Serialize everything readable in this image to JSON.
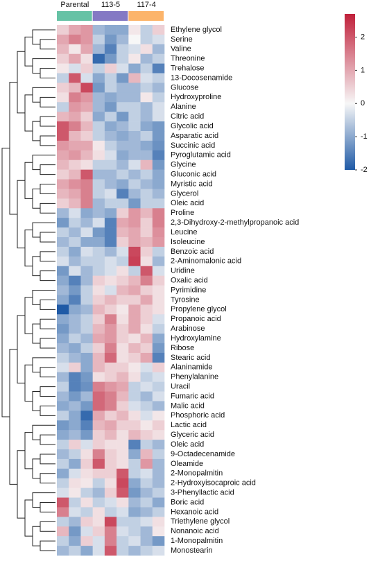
{
  "chart_data": {
    "type": "heatmap",
    "groups": [
      {
        "name": "Parental",
        "color": "#66c2a5"
      },
      {
        "name": "113-5",
        "color": "#8479c4"
      },
      {
        "name": "117-4",
        "color": "#fcb46a"
      }
    ],
    "rows": [
      "Ethylene glycol",
      "Serine",
      "Valine",
      "Threonine",
      "Trehalose",
      "13-Docosenamide",
      "Glucose",
      "Hydroxyproline",
      "Alanine",
      "Citric acid",
      "Glycolic acid",
      "Asparatic acid",
      "Succinic acid",
      "Pyroglutamic acid",
      "Glycine",
      "Gluconic acid",
      "Myristic acid",
      "Glycerol",
      "Oleic acid",
      "Proline",
      "2,3-Dihydroxy-2-methylpropanoic acid",
      "Leucine",
      "Isoleucine",
      "Benzoic acid",
      "2-Aminomalonic acid",
      "Uridine",
      "Oxalic acid",
      "Pyrimidine",
      "Tyrosine",
      "Propylene glycol",
      "Propanoic acid",
      "Arabinose",
      "Hydroxylamine",
      "Ribose",
      "Stearic acid",
      "Alaninamide",
      "Phenylalanine",
      "Uracil",
      "Fumaric acid",
      "Malic acid",
      "Phosphoric acid",
      "Lactic acid",
      "Glyceric acid",
      "Oleic acid",
      "9-Octadecenamide",
      "Oleamide",
      "2-Monopalmitin",
      "2-Hydroxyisocaproic acid",
      "3-Phenyllactic acid",
      "Boric acid",
      "Hexanoic acid",
      "Triethylene glycol",
      "Nonanoic acid",
      "1-Monopalmitin",
      "Monostearin"
    ],
    "values": [
      [
        0.5,
        1.0,
        1.2,
        -0.8,
        -1.0,
        -1.0,
        0.2,
        -0.5,
        0.5
      ],
      [
        1.0,
        1.5,
        1.2,
        -0.5,
        -1.2,
        -0.8,
        0.0,
        -0.5,
        -0.3
      ],
      [
        0.8,
        0.2,
        1.0,
        -0.8,
        -1.5,
        -0.5,
        -0.3,
        0.3,
        -0.8
      ],
      [
        0.5,
        1.0,
        0.3,
        -1.8,
        -1.2,
        -0.5,
        0.2,
        -0.8,
        -0.5
      ],
      [
        0.2,
        -0.3,
        0.5,
        -0.5,
        0.5,
        -0.3,
        -1.0,
        -0.5,
        -1.5
      ],
      [
        -0.5,
        2.0,
        -0.3,
        -1.0,
        -0.5,
        -1.2,
        0.8,
        -0.3,
        -0.5
      ],
      [
        0.5,
        0.8,
        2.2,
        -1.2,
        -0.5,
        -0.8,
        -0.8,
        -0.5,
        -0.8
      ],
      [
        0.3,
        1.5,
        1.2,
        -0.8,
        -1.0,
        -0.8,
        -0.8,
        0.2,
        -0.5
      ],
      [
        -0.5,
        1.2,
        1.0,
        -0.8,
        -1.2,
        -0.5,
        -0.5,
        -0.8,
        -0.3
      ],
      [
        0.8,
        1.0,
        0.5,
        -1.0,
        -0.5,
        -1.2,
        -0.5,
        -0.8,
        -0.3
      ],
      [
        2.0,
        1.5,
        0.8,
        -0.5,
        -1.0,
        -0.8,
        -0.5,
        -1.0,
        -1.2
      ],
      [
        2.0,
        0.8,
        0.5,
        -0.5,
        -0.8,
        -1.0,
        -0.8,
        -0.5,
        -1.2
      ],
      [
        1.2,
        1.0,
        1.0,
        0.2,
        -0.5,
        -0.8,
        -0.8,
        -1.0,
        -1.3
      ],
      [
        1.0,
        1.2,
        0.8,
        0.3,
        -0.3,
        -1.0,
        -0.8,
        -0.8,
        -1.5
      ],
      [
        0.8,
        0.5,
        0.3,
        -0.5,
        -0.5,
        -0.8,
        -0.3,
        0.8,
        -1.2
      ],
      [
        0.5,
        0.8,
        2.0,
        -0.8,
        -0.8,
        -0.5,
        -0.8,
        -0.5,
        -1.0
      ],
      [
        1.0,
        1.3,
        1.5,
        -0.5,
        -0.8,
        -1.0,
        -0.5,
        -0.8,
        -1.0
      ],
      [
        0.8,
        1.0,
        1.5,
        -0.5,
        -0.3,
        -1.5,
        -0.8,
        -0.5,
        -0.8
      ],
      [
        0.5,
        0.8,
        1.5,
        -0.8,
        -0.5,
        -0.5,
        -1.2,
        -0.5,
        -0.5
      ],
      [
        -0.8,
        -0.3,
        -1.0,
        -0.8,
        -1.0,
        0.5,
        1.2,
        0.8,
        1.5
      ],
      [
        -1.2,
        -0.5,
        -0.8,
        -0.3,
        -1.5,
        1.0,
        1.2,
        0.5,
        1.5
      ],
      [
        -0.5,
        -0.8,
        -0.3,
        -1.2,
        -1.5,
        0.8,
        1.0,
        0.5,
        1.3
      ],
      [
        -0.8,
        -0.5,
        -1.0,
        -1.0,
        -1.5,
        0.5,
        1.0,
        0.8,
        1.2
      ],
      [
        -0.5,
        -1.0,
        -0.3,
        -0.5,
        -0.8,
        -0.3,
        2.2,
        0.5,
        -0.5
      ],
      [
        -0.3,
        -0.8,
        -0.5,
        -0.5,
        -0.3,
        -0.5,
        2.3,
        0.3,
        -0.8
      ],
      [
        -1.2,
        -0.3,
        -0.8,
        -0.5,
        -0.3,
        0.3,
        -0.5,
        2.0,
        -0.3
      ],
      [
        -1.0,
        -1.5,
        -0.8,
        0.5,
        0.3,
        0.5,
        0.8,
        1.5,
        0.5
      ],
      [
        -0.8,
        -1.2,
        -0.5,
        0.3,
        -0.3,
        0.8,
        1.0,
        0.5,
        0.3
      ],
      [
        -1.0,
        -1.5,
        -0.5,
        0.5,
        0.8,
        0.5,
        0.5,
        1.0,
        0.3
      ],
      [
        -2.0,
        -1.0,
        -0.8,
        0.8,
        0.5,
        0.2,
        1.0,
        0.5,
        0.3
      ],
      [
        -1.0,
        -0.8,
        -0.5,
        0.5,
        1.5,
        0.3,
        1.0,
        0.5,
        -0.3
      ],
      [
        -1.2,
        -0.8,
        -0.5,
        0.8,
        1.2,
        0.5,
        1.0,
        0.3,
        -0.5
      ],
      [
        -1.0,
        -0.5,
        -0.8,
        1.0,
        1.2,
        0.5,
        0.3,
        0.8,
        -1.0
      ],
      [
        -0.8,
        -1.0,
        -0.5,
        0.5,
        1.5,
        0.3,
        0.8,
        0.5,
        -1.2
      ],
      [
        -0.5,
        -0.8,
        -1.0,
        0.8,
        1.8,
        0.3,
        0.5,
        1.0,
        -1.5
      ],
      [
        -0.3,
        0.5,
        -1.0,
        0.8,
        0.5,
        0.5,
        0.2,
        -0.3,
        0.5
      ],
      [
        -0.8,
        -1.5,
        -1.2,
        0.3,
        0.5,
        0.8,
        0.3,
        -0.5,
        -0.3
      ],
      [
        -0.5,
        -1.5,
        -1.3,
        1.5,
        1.2,
        1.0,
        -0.5,
        -0.3,
        -0.5
      ],
      [
        -0.8,
        -1.2,
        -0.8,
        1.8,
        1.5,
        0.8,
        -0.5,
        -0.8,
        -0.3
      ],
      [
        -1.0,
        -0.8,
        -1.2,
        1.8,
        1.5,
        0.5,
        -0.3,
        -0.5,
        -0.8
      ],
      [
        -0.5,
        -1.0,
        -1.8,
        1.0,
        0.5,
        0.8,
        0.3,
        -0.3,
        0.2
      ],
      [
        -1.2,
        -1.0,
        -1.5,
        0.8,
        1.0,
        0.5,
        0.5,
        0.2,
        0.5
      ],
      [
        -1.0,
        -0.8,
        -1.2,
        0.5,
        0.8,
        0.3,
        0.8,
        0.5,
        0.3
      ],
      [
        -0.5,
        0.5,
        -0.3,
        0.5,
        0.3,
        0.3,
        -1.5,
        -0.5,
        -0.8
      ],
      [
        -0.8,
        -0.5,
        0.3,
        1.5,
        0.5,
        0.3,
        -1.0,
        0.8,
        -0.5
      ],
      [
        -0.5,
        -1.0,
        0.5,
        2.0,
        0.5,
        0.3,
        -0.5,
        1.2,
        -0.8
      ],
      [
        -1.0,
        -0.3,
        0.3,
        0.5,
        0.5,
        2.0,
        -0.5,
        -0.3,
        -0.8
      ],
      [
        -0.5,
        0.3,
        0.2,
        -0.5,
        0.3,
        2.2,
        -1.0,
        -0.5,
        -0.8
      ],
      [
        -0.3,
        0.2,
        -0.5,
        -0.8,
        0.5,
        2.0,
        -1.2,
        -0.8,
        -0.5
      ],
      [
        2.0,
        -0.5,
        0.3,
        -0.5,
        -0.3,
        0.3,
        -0.8,
        -0.5,
        -1.0
      ],
      [
        1.5,
        -0.3,
        -0.5,
        0.3,
        -0.5,
        -0.3,
        -1.0,
        -0.8,
        -0.5
      ],
      [
        -0.5,
        -0.8,
        0.5,
        0.3,
        2.2,
        -0.5,
        -0.5,
        -0.3,
        0.3
      ],
      [
        0.8,
        -1.2,
        -0.3,
        0.5,
        1.5,
        -0.3,
        -0.5,
        -0.8,
        0.2
      ],
      [
        -0.5,
        -1.0,
        0.5,
        -0.3,
        1.5,
        -0.5,
        -0.3,
        -0.8,
        -1.2
      ],
      [
        -0.8,
        -0.5,
        -1.0,
        -0.3,
        2.0,
        -0.5,
        -0.8,
        -0.5,
        -0.3
      ]
    ],
    "colors": [
      "#1f5aa6",
      "#f7f7f7",
      "#c0203a"
    ],
    "clim": [
      -2,
      2.7
    ],
    "cticks": [
      2,
      1,
      0,
      -1,
      -2
    ]
  }
}
